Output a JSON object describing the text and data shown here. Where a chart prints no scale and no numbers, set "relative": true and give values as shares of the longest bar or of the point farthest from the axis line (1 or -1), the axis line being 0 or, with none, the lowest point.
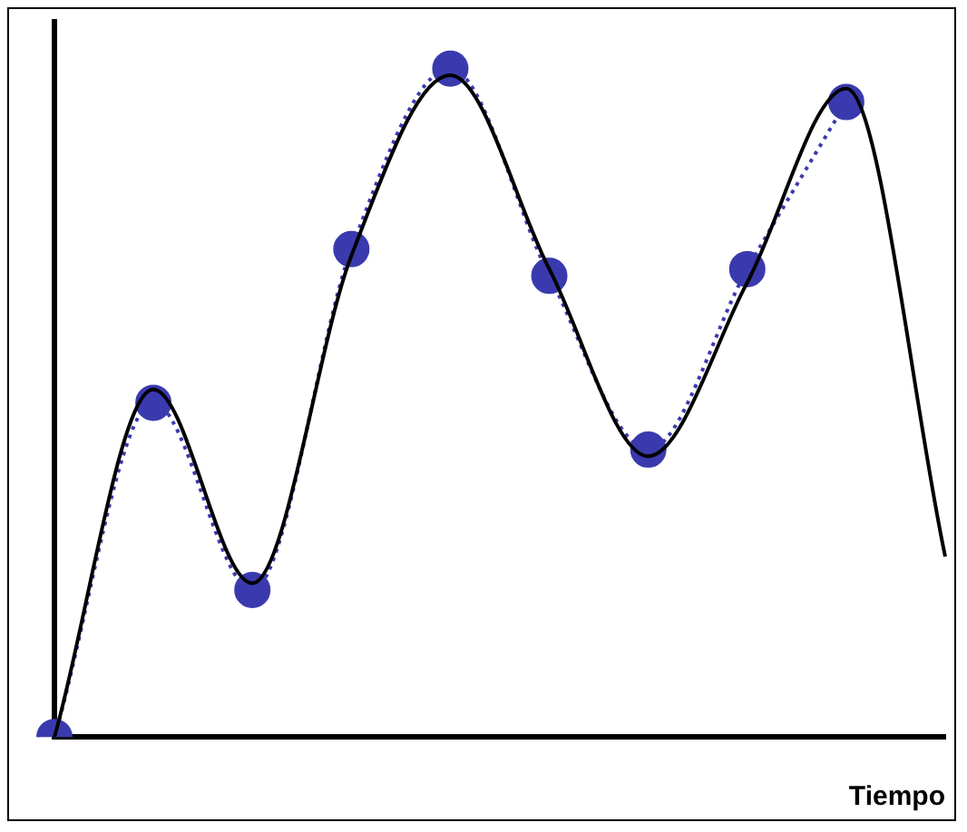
{
  "chart_data": {
    "type": "line",
    "relative": true,
    "xlabel": "Tiempo",
    "categories": [
      null,
      null,
      null,
      null,
      null,
      null,
      null,
      null,
      null,
      null
    ],
    "series": [
      {
        "color": "#000000",
        "line_style": "solid",
        "marker": "none",
        "values": [
          0,
          0.52,
          0.23,
          0.72,
          0.99,
          0.7,
          0.42,
          0.68,
          0.97,
          0.27
        ]
      },
      {
        "color": "#3a3aae",
        "line_style": "dotted",
        "marker": "circle",
        "values": [
          0,
          0.5,
          0.22,
          0.73,
          1,
          0.69,
          0.43,
          0.7,
          0.95,
          null
        ]
      }
    ],
    "grid": false,
    "legend": false
  }
}
